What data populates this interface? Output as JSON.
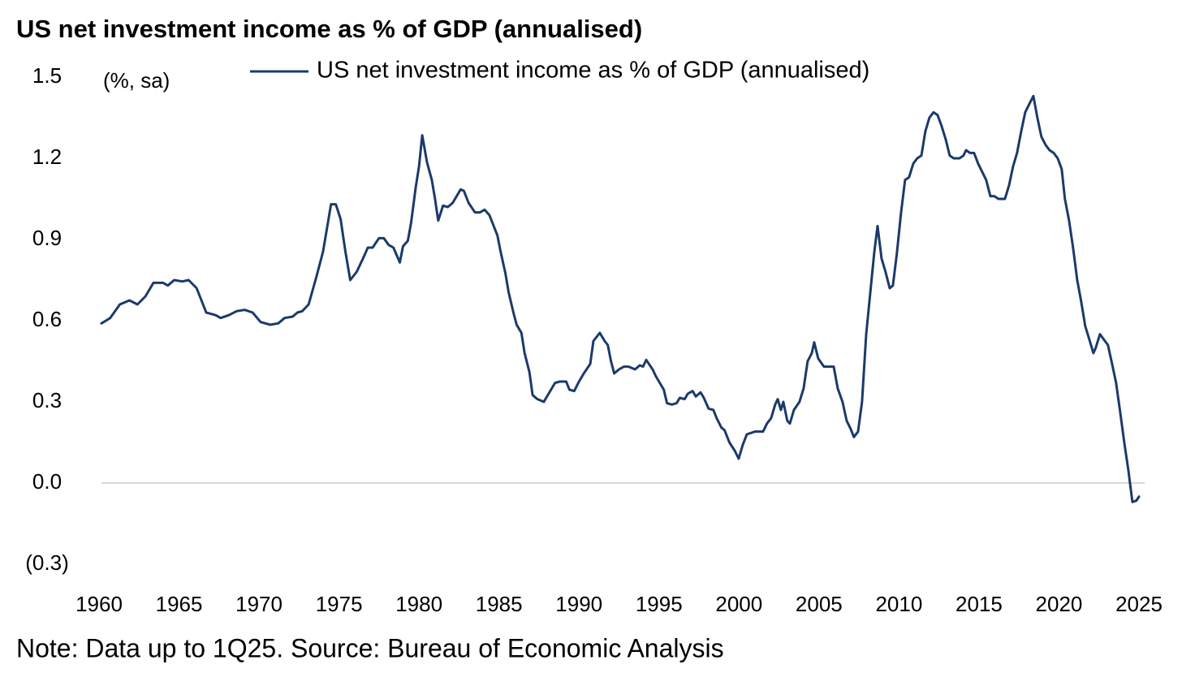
{
  "chart_data": {
    "type": "line",
    "title": "US net investment income as % of GDP (annualised)",
    "y_unit_label": "(%, sa)",
    "note": "Note: Data up to 1Q25. Source: Bureau of Economic Analysis",
    "legend_position": "top",
    "zero_line": true,
    "xlim": [
      1960,
      2025
    ],
    "xticks": [
      1960,
      1965,
      1970,
      1975,
      1980,
      1985,
      1990,
      1995,
      2000,
      2005,
      2010,
      2015,
      2020,
      2025
    ],
    "ylim": [
      -0.3,
      1.5
    ],
    "yticks": [
      {
        "value": -0.3,
        "label": "(0.3)"
      },
      {
        "value": 0,
        "label": "0.0"
      },
      0.3,
      0.6,
      0.9,
      1.2,
      1.5
    ],
    "x": [
      1960.15,
      1960.7,
      1961.3,
      1961.9,
      1962.4,
      1962.9,
      1963.4,
      1964.0,
      1964.3,
      1964.7,
      1965.2,
      1965.6,
      1966.1,
      1966.4,
      1966.7,
      1967.3,
      1967.6,
      1968.1,
      1968.6,
      1969.1,
      1969.6,
      1970.1,
      1970.7,
      1971.2,
      1971.6,
      1972.1,
      1972.4,
      1972.7,
      1973.1,
      1973.6,
      1974.0,
      1974.3,
      1974.5,
      1974.8,
      1975.1,
      1975.4,
      1975.7,
      1976.1,
      1976.5,
      1976.8,
      1977.1,
      1977.5,
      1977.8,
      1978.1,
      1978.4,
      1978.8,
      1979.0,
      1979.3,
      1979.5,
      1979.8,
      1980.0,
      1980.2,
      1980.5,
      1980.8,
      1981.0,
      1981.2,
      1981.5,
      1981.8,
      1982.1,
      1982.3,
      1982.6,
      1982.8,
      1983.1,
      1983.5,
      1983.8,
      1984.1,
      1984.4,
      1984.6,
      1984.9,
      1985.1,
      1985.4,
      1985.6,
      1985.9,
      1986.1,
      1986.4,
      1986.6,
      1986.9,
      1987.1,
      1987.4,
      1987.8,
      1988.1,
      1988.5,
      1988.8,
      1989.2,
      1989.4,
      1989.7,
      1990.0,
      1990.3,
      1990.7,
      1990.9,
      1991.3,
      1991.6,
      1991.8,
      1992.0,
      1992.2,
      1992.5,
      1992.8,
      1993.1,
      1993.5,
      1993.8,
      1994.0,
      1994.2,
      1994.6,
      1994.8,
      1995.1,
      1995.3,
      1995.5,
      1995.8,
      1996.1,
      1996.3,
      1996.6,
      1996.8,
      1997.1,
      1997.3,
      1997.6,
      1997.8,
      1998.1,
      1998.4,
      1998.6,
      1998.9,
      1999.1,
      1999.4,
      1999.73,
      1999.98,
      2000.23,
      2000.49,
      2000.99,
      2001.5,
      2001.75,
      2002.01,
      2002.26,
      2002.42,
      2002.62,
      2002.77,
      2003.02,
      2003.18,
      2003.43,
      2003.78,
      2004.04,
      2004.29,
      2004.55,
      2004.7,
      2004.95,
      2005.31,
      2005.92,
      2006.17,
      2006.47,
      2006.73,
      2006.98,
      2007.18,
      2007.44,
      2007.69,
      2007.95,
      2008.2,
      2008.45,
      2008.66,
      2008.91,
      2009.16,
      2009.42,
      2009.62,
      2009.87,
      2010.13,
      2010.38,
      2010.63,
      2010.89,
      2011.14,
      2011.4,
      2011.65,
      2011.9,
      2012.16,
      2012.41,
      2012.66,
      2012.92,
      2013.17,
      2013.42,
      2013.78,
      2014.03,
      2014.19,
      2014.44,
      2014.69,
      2014.95,
      2015.2,
      2015.45,
      2015.71,
      2015.96,
      2016.22,
      2016.62,
      2016.88,
      2017.13,
      2017.38,
      2017.64,
      2017.89,
      2018.14,
      2018.4,
      2018.65,
      2018.9,
      2019.16,
      2019.41,
      2019.67,
      2019.92,
      2020.17,
      2020.37,
      2020.63,
      2020.88,
      2021.14,
      2021.39,
      2021.64,
      2021.9,
      2022.15,
      2022.3,
      2022.56,
      2022.81,
      2023.06,
      2023.32,
      2023.57,
      2023.83,
      2024.08,
      2024.33,
      2024.59,
      2024.84,
      2025.0
    ],
    "series": [
      {
        "name": "US net investment income as % of GDP (annualised)",
        "color": "#1b3a6b",
        "values": [
          0.59,
          0.61,
          0.66,
          0.675,
          0.66,
          0.69,
          0.74,
          0.74,
          0.73,
          0.75,
          0.745,
          0.75,
          0.72,
          0.675,
          0.63,
          0.62,
          0.61,
          0.62,
          0.635,
          0.64,
          0.63,
          0.595,
          0.585,
          0.59,
          0.61,
          0.615,
          0.63,
          0.635,
          0.66,
          0.765,
          0.855,
          0.96,
          1.03,
          1.03,
          0.975,
          0.855,
          0.75,
          0.78,
          0.83,
          0.87,
          0.87,
          0.905,
          0.905,
          0.88,
          0.87,
          0.815,
          0.875,
          0.895,
          0.96,
          1.095,
          1.17,
          1.285,
          1.185,
          1.12,
          1.05,
          0.97,
          1.025,
          1.02,
          1.035,
          1.055,
          1.085,
          1.08,
          1.035,
          1.0,
          1.0,
          1.01,
          0.99,
          0.96,
          0.915,
          0.855,
          0.775,
          0.705,
          0.63,
          0.585,
          0.555,
          0.48,
          0.41,
          0.325,
          0.31,
          0.3,
          0.33,
          0.37,
          0.375,
          0.375,
          0.345,
          0.34,
          0.375,
          0.405,
          0.44,
          0.525,
          0.555,
          0.525,
          0.51,
          0.45,
          0.405,
          0.42,
          0.43,
          0.43,
          0.42,
          0.435,
          0.43,
          0.455,
          0.42,
          0.395,
          0.365,
          0.345,
          0.295,
          0.29,
          0.295,
          0.315,
          0.31,
          0.33,
          0.34,
          0.32,
          0.335,
          0.315,
          0.275,
          0.27,
          0.24,
          0.205,
          0.195,
          0.15,
          0.12,
          0.09,
          0.14,
          0.18,
          0.19,
          0.19,
          0.22,
          0.24,
          0.29,
          0.31,
          0.27,
          0.3,
          0.23,
          0.22,
          0.27,
          0.3,
          0.35,
          0.45,
          0.48,
          0.52,
          0.46,
          0.43,
          0.43,
          0.35,
          0.3,
          0.23,
          0.2,
          0.17,
          0.19,
          0.3,
          0.55,
          0.7,
          0.85,
          0.95,
          0.83,
          0.78,
          0.72,
          0.73,
          0.85,
          1.0,
          1.12,
          1.13,
          1.18,
          1.2,
          1.21,
          1.3,
          1.35,
          1.37,
          1.36,
          1.32,
          1.27,
          1.21,
          1.2,
          1.2,
          1.21,
          1.23,
          1.22,
          1.22,
          1.18,
          1.15,
          1.12,
          1.06,
          1.06,
          1.05,
          1.05,
          1.1,
          1.17,
          1.22,
          1.3,
          1.37,
          1.4,
          1.43,
          1.35,
          1.28,
          1.25,
          1.23,
          1.22,
          1.2,
          1.16,
          1.05,
          0.97,
          0.87,
          0.75,
          0.67,
          0.58,
          0.53,
          0.48,
          0.5,
          0.55,
          0.53,
          0.51,
          0.44,
          0.37,
          0.26,
          0.15,
          0.05,
          -0.07,
          -0.065,
          -0.05
        ]
      }
    ]
  }
}
